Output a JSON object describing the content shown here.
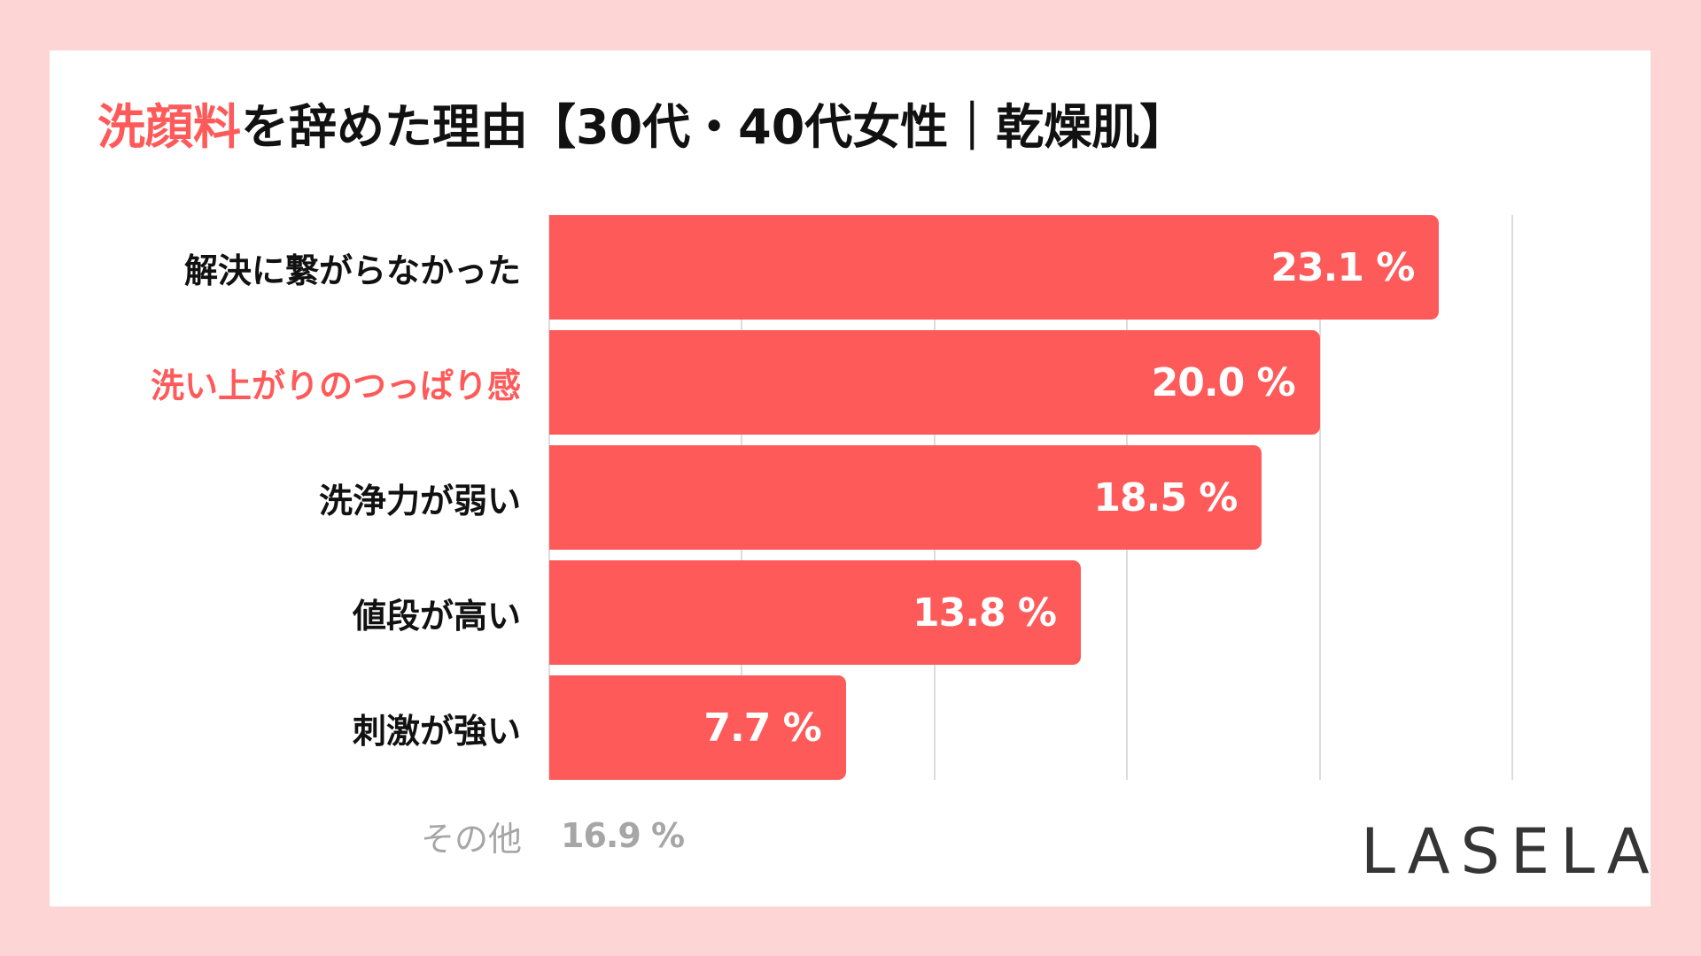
{
  "colors": {
    "page_background": "#fdd5d5",
    "card_background": "#ffffff",
    "accent": "#ff5a5a",
    "text": "#111111",
    "muted_text": "#a6a6a6",
    "gridline": "#dcdcdc",
    "logo": "#353535"
  },
  "title": {
    "accent_part": "洗顔料",
    "rest": "を辞めた理由【30代・40代女性｜乾燥肌】"
  },
  "bars": [
    {
      "label": "解決に繋がらなかった",
      "value_text": "23.1 %",
      "value": 23.1,
      "highlight": false
    },
    {
      "label": "洗い上がりのつっぱり感",
      "value_text": "20.0 %",
      "value": 20.0,
      "highlight": true
    },
    {
      "label": "洗浄力が弱い",
      "value_text": "18.5 %",
      "value": 18.5,
      "highlight": false
    },
    {
      "label": "値段が高い",
      "value_text": "13.8 %",
      "value": 13.8,
      "highlight": false
    },
    {
      "label": "刺激が強い",
      "value_text": "7.7 %",
      "value": 7.7,
      "highlight": false
    }
  ],
  "other": {
    "label": "その他",
    "value_text": "16.9 %"
  },
  "logo": {
    "text": "LASELA"
  },
  "chart_data": {
    "type": "bar",
    "orientation": "horizontal",
    "title": "洗顔料を辞めた理由【30代・40代女性｜乾燥肌】",
    "categories": [
      "解決に繋がらなかった",
      "洗い上がりのつっぱり感",
      "洗浄力が弱い",
      "値段が高い",
      "刺激が強い"
    ],
    "values": [
      23.1,
      20.0,
      18.5,
      13.8,
      7.7
    ],
    "unit": "%",
    "highlighted_category": "洗い上がりのつっぱり感",
    "annotations": [
      {
        "label": "その他",
        "value": 16.9
      }
    ],
    "xlim": [
      0,
      25
    ],
    "gridlines": [
      0,
      5,
      10,
      15,
      20,
      25
    ],
    "grid": true,
    "xlabel": "",
    "ylabel": "",
    "legend": "none",
    "data_labels": "inside-end"
  }
}
